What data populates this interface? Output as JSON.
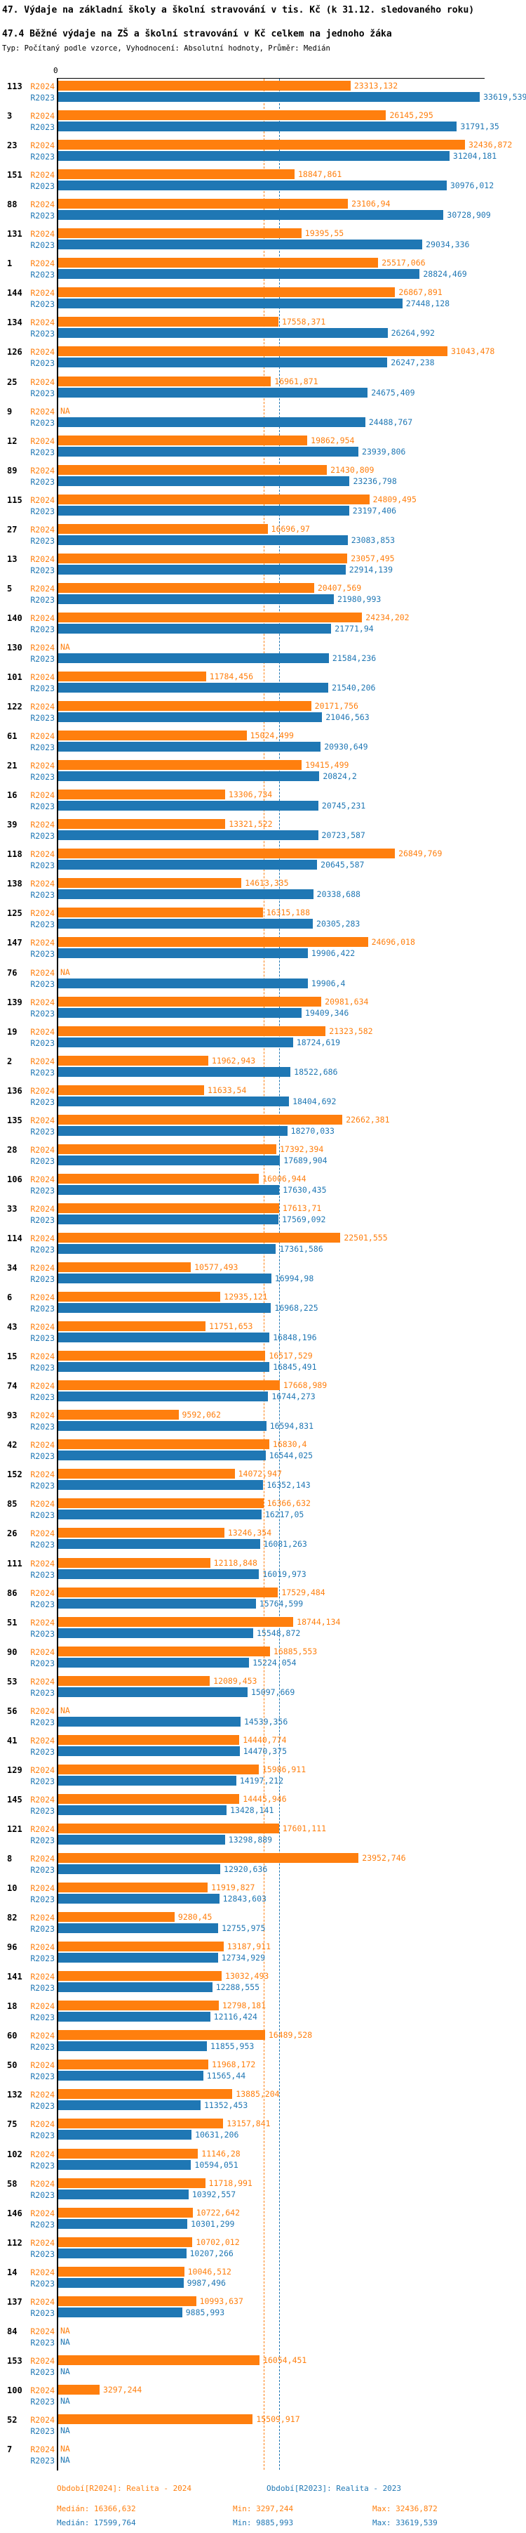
{
  "header": {
    "title": "47. Výdaje na základní školy a školní stravování v tis. Kč (k 31.12. sledovaného roku)",
    "subtitle": "47.4 Běžné výdaje na ZŠ a školní stravování v Kč celkem na jednoho žáka",
    "meta": "Typ: Počítaný podle vzorce, Vyhodnocení: Absolutní hodnoty, Průměr: Medián"
  },
  "chart_data": {
    "type": "bar",
    "orientation": "horizontal",
    "title": "47.4 Běžné výdaje na ZŠ a školní stravování v Kč celkem na jednoho žáka",
    "axis_zero_label": "0",
    "value_format": "czech decimal comma, Kč",
    "legend_position": "bottom",
    "series": [
      {
        "key": "r2024",
        "name": "R2024",
        "color": "#ff7f0e",
        "median": "16366,632",
        "min": "3297,244",
        "max": "32436,872"
      },
      {
        "key": "r2023",
        "name": "R2023",
        "color": "#1f77b4",
        "median": "17599,764",
        "min": "9885,993",
        "max": "33619,539"
      }
    ],
    "rows": [
      {
        "id": "113",
        "r2024": "23313,132",
        "r2023": "33619,539"
      },
      {
        "id": "3",
        "r2024": "26145,295",
        "r2023": "31791,35"
      },
      {
        "id": "23",
        "r2024": "32436,872",
        "r2023": "31204,181"
      },
      {
        "id": "151",
        "r2024": "18847,861",
        "r2023": "30976,012"
      },
      {
        "id": "88",
        "r2024": "23106,94",
        "r2023": "30728,909"
      },
      {
        "id": "131",
        "r2024": "19395,55",
        "r2023": "29034,336"
      },
      {
        "id": "1",
        "r2024": "25517,066",
        "r2023": "28824,469"
      },
      {
        "id": "144",
        "r2024": "26867,891",
        "r2023": "27448,128"
      },
      {
        "id": "134",
        "r2024": "17558,371",
        "r2023": "26264,992"
      },
      {
        "id": "126",
        "r2024": "31043,478",
        "r2023": "26247,238"
      },
      {
        "id": "25",
        "r2024": "16961,871",
        "r2023": "24675,409"
      },
      {
        "id": "9",
        "r2024": "NA",
        "r2023": "24488,767"
      },
      {
        "id": "12",
        "r2024": "19862,954",
        "r2023": "23939,806"
      },
      {
        "id": "89",
        "r2024": "21430,809",
        "r2023": "23236,798"
      },
      {
        "id": "115",
        "r2024": "24809,495",
        "r2023": "23197,406"
      },
      {
        "id": "27",
        "r2024": "16696,97",
        "r2023": "23083,853"
      },
      {
        "id": "13",
        "r2024": "23057,495",
        "r2023": "22914,139"
      },
      {
        "id": "5",
        "r2024": "20407,569",
        "r2023": "21980,993"
      },
      {
        "id": "140",
        "r2024": "24234,202",
        "r2023": "21771,94"
      },
      {
        "id": "130",
        "r2024": "NA",
        "r2023": "21584,236"
      },
      {
        "id": "101",
        "r2024": "11784,456",
        "r2023": "21540,206"
      },
      {
        "id": "122",
        "r2024": "20171,756",
        "r2023": "21046,563"
      },
      {
        "id": "61",
        "r2024": "15024,499",
        "r2023": "20930,649"
      },
      {
        "id": "21",
        "r2024": "19415,499",
        "r2023": "20824,2"
      },
      {
        "id": "16",
        "r2024": "13306,734",
        "r2023": "20745,231"
      },
      {
        "id": "39",
        "r2024": "13321,522",
        "r2023": "20723,587"
      },
      {
        "id": "118",
        "r2024": "26849,769",
        "r2023": "20645,587"
      },
      {
        "id": "138",
        "r2024": "14613,335",
        "r2023": "20338,688"
      },
      {
        "id": "125",
        "r2024": "16315,188",
        "r2023": "20305,283"
      },
      {
        "id": "147",
        "r2024": "24696,018",
        "r2023": "19906,422"
      },
      {
        "id": "76",
        "r2024": "NA",
        "r2023": "19906,4"
      },
      {
        "id": "139",
        "r2024": "20981,634",
        "r2023": "19409,346"
      },
      {
        "id": "19",
        "r2024": "21323,582",
        "r2023": "18724,619"
      },
      {
        "id": "2",
        "r2024": "11962,943",
        "r2023": "18522,686"
      },
      {
        "id": "136",
        "r2024": "11633,54",
        "r2023": "18404,692"
      },
      {
        "id": "135",
        "r2024": "22662,381",
        "r2023": "18270,033"
      },
      {
        "id": "28",
        "r2024": "17392,394",
        "r2023": "17689,904"
      },
      {
        "id": "106",
        "r2024": "16006,944",
        "r2023": "17630,435"
      },
      {
        "id": "33",
        "r2024": "17613,71",
        "r2023": "17569,092"
      },
      {
        "id": "114",
        "r2024": "22501,555",
        "r2023": "17361,586"
      },
      {
        "id": "34",
        "r2024": "10577,493",
        "r2023": "16994,98"
      },
      {
        "id": "6",
        "r2024": "12935,121",
        "r2023": "16968,225"
      },
      {
        "id": "43",
        "r2024": "11751,653",
        "r2023": "16848,196"
      },
      {
        "id": "15",
        "r2024": "16517,529",
        "r2023": "16845,491"
      },
      {
        "id": "74",
        "r2024": "17668,989",
        "r2023": "16744,273"
      },
      {
        "id": "93",
        "r2024": "9592,062",
        "r2023": "16594,831"
      },
      {
        "id": "42",
        "r2024": "16830,4",
        "r2023": "16544,025"
      },
      {
        "id": "152",
        "r2024": "14072,947",
        "r2023": "16352,143"
      },
      {
        "id": "85",
        "r2024": "16366,632",
        "r2023": "16217,05"
      },
      {
        "id": "26",
        "r2024": "13246,354",
        "r2023": "16081,263"
      },
      {
        "id": "111",
        "r2024": "12118,848",
        "r2023": "16019,973"
      },
      {
        "id": "86",
        "r2024": "17529,484",
        "r2023": "15764,599"
      },
      {
        "id": "51",
        "r2024": "18744,134",
        "r2023": "15548,872"
      },
      {
        "id": "90",
        "r2024": "16885,553",
        "r2023": "15224,054"
      },
      {
        "id": "53",
        "r2024": "12089,453",
        "r2023": "15097,669"
      },
      {
        "id": "56",
        "r2024": "NA",
        "r2023": "14539,356"
      },
      {
        "id": "41",
        "r2024": "14440,774",
        "r2023": "14470,375"
      },
      {
        "id": "129",
        "r2024": "15986,911",
        "r2023": "14197,212"
      },
      {
        "id": "145",
        "r2024": "14445,946",
        "r2023": "13428,141"
      },
      {
        "id": "121",
        "r2024": "17601,111",
        "r2023": "13298,889"
      },
      {
        "id": "8",
        "r2024": "23952,746",
        "r2023": "12920,636"
      },
      {
        "id": "10",
        "r2024": "11919,827",
        "r2023": "12843,603"
      },
      {
        "id": "82",
        "r2024": "9280,45",
        "r2023": "12755,975"
      },
      {
        "id": "96",
        "r2024": "13187,911",
        "r2023": "12734,929"
      },
      {
        "id": "141",
        "r2024": "13032,493",
        "r2023": "12288,555"
      },
      {
        "id": "18",
        "r2024": "12798,181",
        "r2023": "12116,424"
      },
      {
        "id": "60",
        "r2024": "16489,528",
        "r2023": "11855,953"
      },
      {
        "id": "50",
        "r2024": "11968,172",
        "r2023": "11565,44"
      },
      {
        "id": "132",
        "r2024": "13885,204",
        "r2023": "11352,453"
      },
      {
        "id": "75",
        "r2024": "13157,841",
        "r2023": "10631,206"
      },
      {
        "id": "102",
        "r2024": "11146,28",
        "r2023": "10594,051"
      },
      {
        "id": "58",
        "r2024": "11718,991",
        "r2023": "10392,557"
      },
      {
        "id": "146",
        "r2024": "10722,642",
        "r2023": "10301,299"
      },
      {
        "id": "112",
        "r2024": "10702,012",
        "r2023": "10207,266"
      },
      {
        "id": "14",
        "r2024": "10046,512",
        "r2023": "9987,496"
      },
      {
        "id": "137",
        "r2024": "10993,637",
        "r2023": "9885,993"
      },
      {
        "id": "84",
        "r2024": "NA",
        "r2023": "NA"
      },
      {
        "id": "153",
        "r2024": "16054,451",
        "r2023": "NA"
      },
      {
        "id": "100",
        "r2024": "3297,244",
        "r2023": "NA"
      },
      {
        "id": "52",
        "r2024": "15509,917",
        "r2023": "NA"
      },
      {
        "id": "7",
        "r2024": "NA",
        "r2023": "NA"
      }
    ]
  },
  "footer": {
    "r2024": {
      "period": "Období[R2024]: Realita - 2024",
      "median": "Medián: 16366,632",
      "min": "Min: 3297,244",
      "max": "Max: 32436,872"
    },
    "r2023": {
      "period": "Období[R2023]: Realita - 2023",
      "median": "Medián: 17599,764",
      "min": "Min: 9885,993",
      "max": "Max: 33619,539"
    }
  }
}
